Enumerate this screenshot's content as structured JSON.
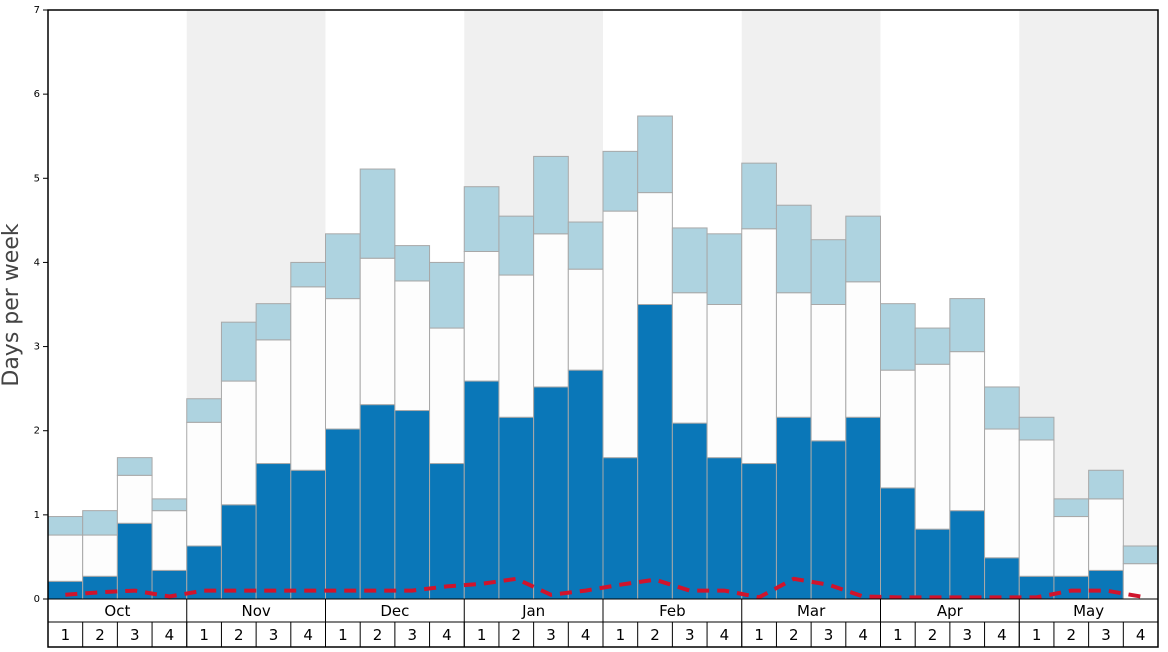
{
  "chart_data": {
    "type": "bar",
    "stacked": true,
    "y_label": "Days per week",
    "months": [
      "Oct",
      "Nov",
      "Dec",
      "Jan",
      "Feb",
      "Mar",
      "Apr",
      "May"
    ],
    "categories": [
      "1",
      "2",
      "3",
      "4",
      "1",
      "2",
      "3",
      "4",
      "1",
      "2",
      "3",
      "4",
      "1",
      "2",
      "3",
      "4",
      "1",
      "2",
      "3",
      "4",
      "1",
      "2",
      "3",
      "4",
      "1",
      "2",
      "3",
      "4",
      "1",
      "2",
      "3",
      "4"
    ],
    "ylim": [
      0,
      7
    ],
    "yticks": [
      0,
      1,
      2,
      3,
      4,
      5,
      6,
      7
    ],
    "series": [
      {
        "color": "#0a77b8",
        "values": [
          0.21,
          0.27,
          0.9,
          0.34,
          0.63,
          1.12,
          1.61,
          1.53,
          2.02,
          2.31,
          2.24,
          1.61,
          2.59,
          2.16,
          2.52,
          2.72,
          1.68,
          3.5,
          2.09,
          1.68,
          1.61,
          2.16,
          1.88,
          2.16,
          1.32,
          0.83,
          1.05,
          0.49,
          0.27,
          0.27,
          0.34,
          0
        ]
      },
      {
        "color": "#fdfdfd",
        "values": [
          0.55,
          0.49,
          0.57,
          0.71,
          1.47,
          1.47,
          1.47,
          2.18,
          1.55,
          1.74,
          1.54,
          1.61,
          1.54,
          1.69,
          1.82,
          1.2,
          2.93,
          1.33,
          1.55,
          1.82,
          2.79,
          1.48,
          1.62,
          1.61,
          1.4,
          1.96,
          1.89,
          1.53,
          1.62,
          0.71,
          0.85,
          0.42
        ]
      },
      {
        "color": "#aed3e0",
        "values": [
          0.22,
          0.29,
          0.21,
          0.14,
          0.28,
          0.7,
          0.43,
          0.29,
          0.77,
          1.06,
          0.42,
          0.78,
          0.77,
          0.7,
          0.92,
          0.56,
          0.71,
          0.91,
          0.77,
          0.84,
          0.78,
          1.04,
          0.77,
          0.78,
          0.79,
          0.43,
          0.63,
          0.5,
          0.27,
          0.21,
          0.34,
          0.21
        ]
      },
      {
        "type": "line",
        "color": "#d0142c",
        "values": [
          0.05,
          0.08,
          0.1,
          0.03,
          0.1,
          0.1,
          0.1,
          0.1,
          0.1,
          0.1,
          0.1,
          0.15,
          0.18,
          0.24,
          0.05,
          0.1,
          0.17,
          0.23,
          0.1,
          0.1,
          0.02,
          0.24,
          0.17,
          0.03,
          0.02,
          0.02,
          0.02,
          0.02,
          0.02,
          0.1,
          0.1,
          0.03
        ]
      }
    ]
  }
}
